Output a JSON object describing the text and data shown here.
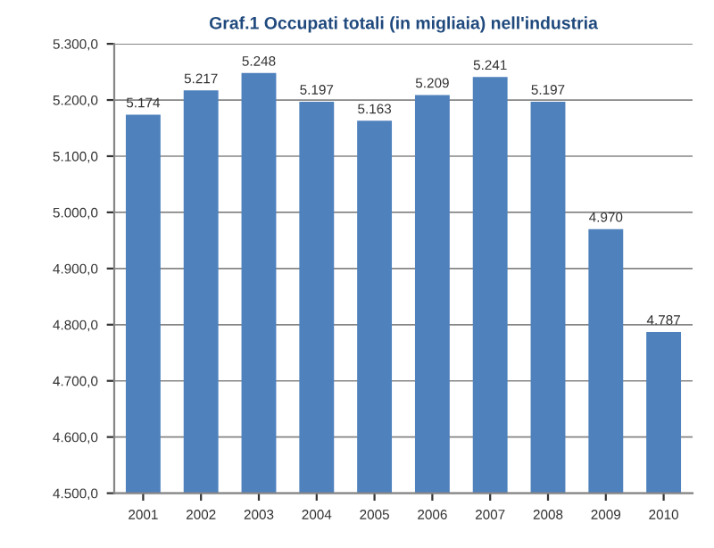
{
  "chart_data": {
    "type": "bar",
    "title": "Graf.1 Occupati totali (in migliaia) nell'industria",
    "categories": [
      "2001",
      "2002",
      "2003",
      "2004",
      "2005",
      "2006",
      "2007",
      "2008",
      "2009",
      "2010"
    ],
    "values": [
      5174,
      5217,
      5248,
      5197,
      5163,
      5209,
      5241,
      5197,
      4970,
      4787
    ],
    "value_labels": [
      "5.174",
      "5.217",
      "5.248",
      "5.197",
      "5.163",
      "5.209",
      "5.241",
      "5.197",
      "4.970",
      "4.787"
    ],
    "color": "#4f81bd",
    "ylim": [
      4500,
      5300
    ],
    "yticks": [
      {
        "value": 4500,
        "label": "4.500,0"
      },
      {
        "value": 4600,
        "label": "4.600,0"
      },
      {
        "value": 4700,
        "label": "4.700,0"
      },
      {
        "value": 4800,
        "label": "4.800,0"
      },
      {
        "value": 4900,
        "label": "4.900,0"
      },
      {
        "value": 5000,
        "label": "5.000,0"
      },
      {
        "value": 5100,
        "label": "5.100,0"
      },
      {
        "value": 5200,
        "label": "5.200,0"
      },
      {
        "value": 5300,
        "label": "5.300,0"
      }
    ],
    "grid": "y",
    "legend": false
  }
}
